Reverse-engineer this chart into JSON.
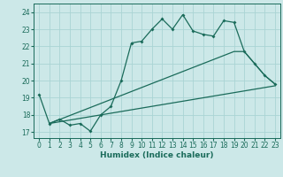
{
  "xlabel": "Humidex (Indice chaleur)",
  "bg_color": "#cce8e8",
  "grid_color": "#aad4d4",
  "line_color": "#1a6b5a",
  "xlim": [
    -0.5,
    23.5
  ],
  "ylim": [
    16.65,
    24.5
  ],
  "xticks": [
    0,
    1,
    2,
    3,
    4,
    5,
    6,
    7,
    8,
    9,
    10,
    11,
    12,
    13,
    14,
    15,
    16,
    17,
    18,
    19,
    20,
    21,
    22,
    23
  ],
  "yticks": [
    17,
    18,
    19,
    20,
    21,
    22,
    23,
    24
  ],
  "main_x": [
    0,
    1,
    2,
    3,
    4,
    5,
    6,
    7,
    8,
    9,
    10,
    11,
    12,
    13,
    14,
    15,
    16,
    17,
    18,
    19,
    20,
    21,
    22,
    23
  ],
  "main_y": [
    19.2,
    17.5,
    17.75,
    17.4,
    17.5,
    17.05,
    18.0,
    18.5,
    20.0,
    22.2,
    22.3,
    23.0,
    23.6,
    23.0,
    23.85,
    22.9,
    22.7,
    22.6,
    23.5,
    23.4,
    21.7,
    21.0,
    20.3,
    19.8
  ],
  "trend1_x": [
    1,
    23
  ],
  "trend1_y": [
    17.5,
    19.7
  ],
  "trend2_x": [
    1,
    19,
    20,
    21,
    22,
    23
  ],
  "trend2_y": [
    17.5,
    21.7,
    21.7,
    21.0,
    20.3,
    19.8
  ]
}
